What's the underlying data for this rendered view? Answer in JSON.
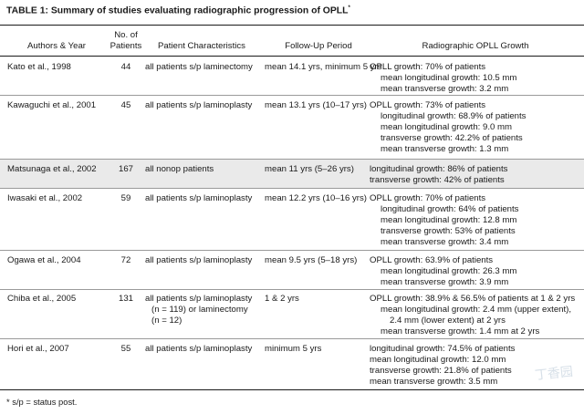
{
  "table": {
    "title": "TABLE 1: Summary of studies evaluating radiographic progression of OPLL",
    "title_mark": "*",
    "headers": {
      "authors": "Authors & Year",
      "patients_1": "No. of",
      "patients_2": "Patients",
      "characteristics": "Patient Characteristics",
      "followup": "Follow-Up Period",
      "growth": "Radiographic OPLL Growth"
    },
    "rows": [
      {
        "authors": "Kato et al., 1998",
        "patients": "44",
        "characteristics": [
          "all patients s/p laminectomy"
        ],
        "followup": "mean 14.1 yrs, minimum 5 yrs",
        "growth": [
          "OPLL growth: 70% of patients",
          "mean longitudinal growth: 10.5 mm",
          "mean transverse growth: 3.2 mm"
        ]
      },
      {
        "authors": "Kawaguchi et al., 2001",
        "patients": "45",
        "characteristics": [
          "all patients s/p laminoplasty"
        ],
        "followup": "mean 13.1 yrs (10–17 yrs)",
        "growth": [
          "OPLL growth: 73% of patients",
          "longitudinal growth: 68.9% of patients",
          "mean longitudinal growth: 9.0 mm",
          "transverse growth: 42.2% of patients",
          "mean transverse growth: 1.3 mm"
        ]
      },
      {
        "authors": "Matsunaga et al., 2002",
        "patients": "167",
        "characteristics": [
          "all nonop patients"
        ],
        "followup": "mean 11 yrs (5–26 yrs)",
        "growth": [
          "longitudinal growth: 86% of patients",
          "transverse growth: 42% of patients"
        ]
      },
      {
        "authors": "Iwasaki et al., 2002",
        "patients": "59",
        "characteristics": [
          "all patients s/p laminoplasty"
        ],
        "followup": "mean 12.2 yrs (10–16 yrs)",
        "growth": [
          "OPLL growth: 70% of patients",
          "longitudinal growth: 64% of patients",
          "mean longitudinal growth: 12.8 mm",
          "transverse growth: 53% of patients",
          "mean transverse growth: 3.4 mm"
        ]
      },
      {
        "authors": "Ogawa et al., 2004",
        "patients": "72",
        "characteristics": [
          "all patients s/p laminoplasty"
        ],
        "followup": "mean 9.5 yrs (5–18 yrs)",
        "growth": [
          "OPLL growth: 63.9% of patients",
          "mean longitudinal growth: 26.3 mm",
          "mean transverse growth: 3.9 mm"
        ]
      },
      {
        "authors": "Chiba et al., 2005",
        "patients": "131",
        "characteristics": [
          "all patients s/p laminoplasty",
          "(n = 119) or laminectomy",
          "(n = 12)"
        ],
        "followup": "1 & 2 yrs",
        "growth": [
          "OPLL growth: 38.9% & 56.5% of patients at 1 & 2 yrs",
          "mean longitudinal growth: 2.4 mm (upper extent),",
          "2.4 mm (lower extent) at 2 yrs",
          "mean transverse growth: 1.4 mm at 2 yrs"
        ]
      },
      {
        "authors": "Hori et al., 2007",
        "patients": "55",
        "characteristics": [
          "all patients s/p laminoplasty"
        ],
        "followup": "minimum 5 yrs",
        "growth": [
          "longitudinal growth: 74.5% of patients",
          "mean longitudinal growth: 12.0 mm",
          "transverse growth: 21.8% of patients",
          "mean transverse growth: 3.5 mm"
        ]
      }
    ],
    "footnote": "*  s/p = status post."
  },
  "watermark": "丁香园",
  "colors": {
    "band": "#eaeaea",
    "rule": "#1a1a1a",
    "text": "#1a1a1a"
  }
}
